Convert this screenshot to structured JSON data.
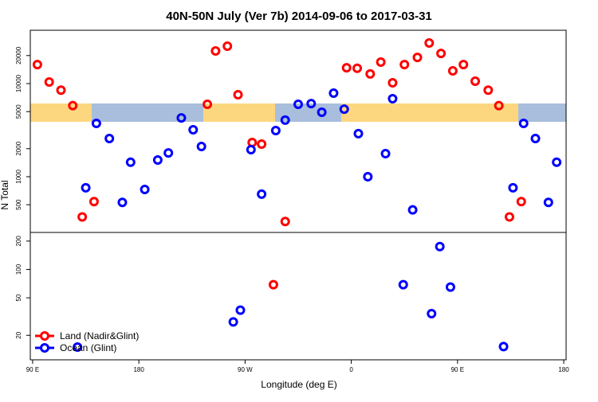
{
  "chart_data": [
    {
      "type": "scatter",
      "title": "40N-50N July (Ver 7b)   2014-09-06 to 2017-03-31",
      "ylabel": "N Total",
      "ylog": true,
      "xlim": [
        88,
        542
      ],
      "ylim": [
        252,
        37400
      ],
      "yticks": [
        500,
        1000,
        2000,
        5000,
        10000,
        20000
      ],
      "series": [
        {
          "name": "Land (Nadir&Glint)",
          "color": "#ff0000",
          "x": [
            94,
            104,
            114,
            124,
            132,
            142,
            238,
            245,
            255,
            264,
            276,
            284,
            304,
            356,
            365,
            376,
            385,
            395,
            405,
            416,
            426,
            436,
            446,
            455,
            465,
            476,
            485,
            494,
            504
          ],
          "values": [
            16000,
            10400,
            8500,
            5800,
            370,
            540,
            6000,
            22400,
            25200,
            7600,
            2330,
            2240,
            330,
            14800,
            14600,
            12700,
            17000,
            10200,
            16000,
            19100,
            27300,
            21100,
            13700,
            16000,
            10600,
            8500,
            5800,
            370,
            540
          ]
        },
        {
          "name": "Ocean (Glint)",
          "color": "#0000ff",
          "x": [
            135,
            144,
            155,
            166,
            173,
            185,
            196,
            205,
            216,
            226,
            233,
            275,
            284,
            296,
            304,
            315,
            326,
            335,
            345,
            354,
            366,
            374,
            389,
            395,
            412,
            497,
            506,
            516,
            527,
            534
          ],
          "values": [
            760,
            3740,
            2570,
            530,
            1430,
            730,
            1510,
            1800,
            4280,
            3190,
            2110,
            1950,
            650,
            3130,
            4050,
            6000,
            6100,
            4920,
            7890,
            5320,
            2900,
            1000,
            1770,
            6880,
            440,
            760,
            3740,
            2570,
            530,
            1430
          ]
        }
      ]
    },
    {
      "type": "scatter",
      "xlabel": "Longitude (deg E)",
      "ylog": true,
      "legend": "bottom-left",
      "xlim": [
        88,
        542
      ],
      "ylim": [
        11,
        247
      ],
      "xticks": [
        {
          "value": 90,
          "label": "90 E"
        },
        180,
        {
          "value": 270,
          "label": "90 W"
        },
        {
          "value": 360,
          "label": "0"
        },
        {
          "value": 450,
          "label": "90 E"
        },
        {
          "value": 540,
          "label": "180"
        }
      ],
      "yticks": [
        20,
        50,
        100,
        200
      ],
      "series": [
        {
          "name": "Land (Nadir&Glint)",
          "color": "#ff0000",
          "x": [
            294
          ],
          "values": [
            69
          ]
        },
        {
          "name": "Ocean (Glint)",
          "color": "#0000ff",
          "x": [
            128,
            260,
            266,
            404,
            428,
            435,
            444,
            489
          ],
          "values": [
            15,
            27.8,
            37,
            69,
            34,
            175,
            65,
            15.2
          ]
        }
      ]
    }
  ]
}
